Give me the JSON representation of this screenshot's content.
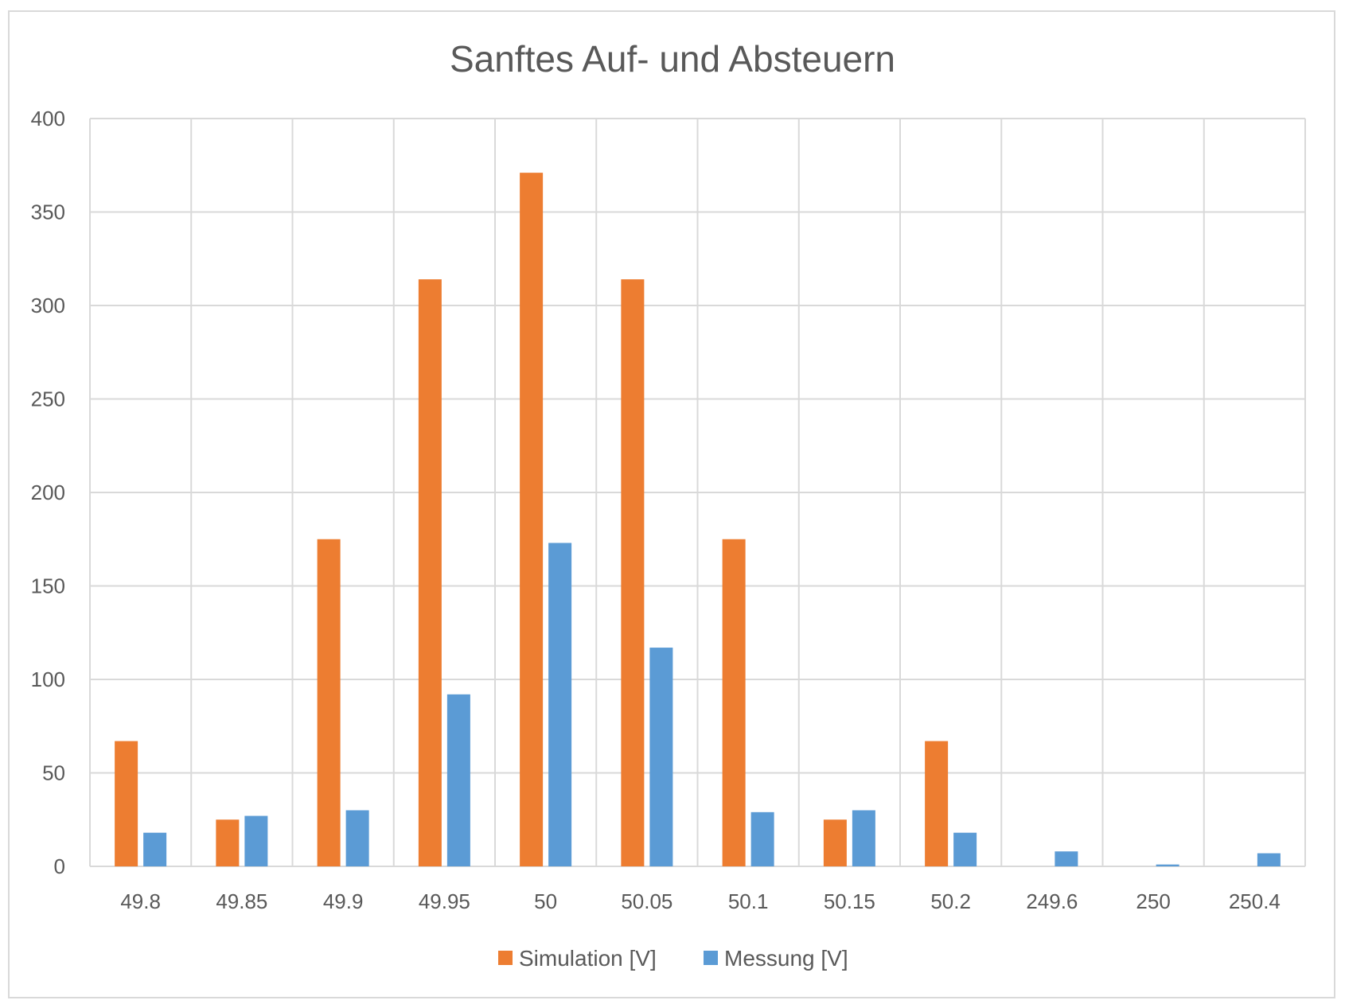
{
  "chart_data": {
    "type": "bar",
    "title": "Sanftes Auf- und Absteuern",
    "xlabel": "",
    "ylabel": "",
    "categories": [
      "49.8",
      "49.85",
      "49.9",
      "49.95",
      "50",
      "50.05",
      "50.1",
      "50.15",
      "50.2",
      "249.6",
      "250",
      "250.4"
    ],
    "series": [
      {
        "name": "Simulation [V]",
        "color": "#ED7D31",
        "values": [
          67,
          25,
          175,
          314,
          371,
          314,
          175,
          25,
          67,
          0,
          0,
          0
        ]
      },
      {
        "name": "Messung [V]",
        "color": "#5B9BD5",
        "values": [
          18,
          27,
          30,
          92,
          173,
          117,
          29,
          30,
          18,
          8,
          1,
          7
        ]
      }
    ],
    "ylim": [
      0,
      400
    ],
    "yticks": [
      0,
      50,
      100,
      150,
      200,
      250,
      300,
      350,
      400
    ],
    "grid": true,
    "legend_position": "bottom",
    "gridline_color": "#d9d9d9",
    "text_color": "#595959"
  }
}
